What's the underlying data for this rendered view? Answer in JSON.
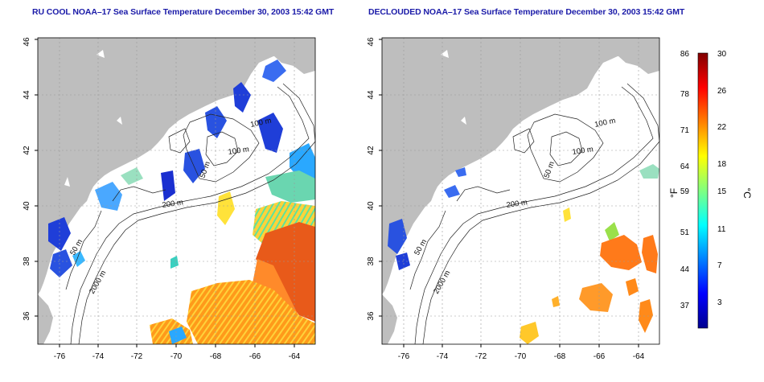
{
  "left_panel": {
    "title": "RU COOL NOAA–17 Sea Surface Temperature December 30, 2003 15:42 GMT",
    "x_ticks": [
      "-76",
      "-74",
      "-72",
      "-70",
      "-68",
      "-66",
      "-64"
    ],
    "y_ticks": [
      "36",
      "38",
      "40",
      "42",
      "44",
      "46"
    ],
    "contours": [
      "100 m",
      "100 m",
      "50 m",
      "200 m",
      "50 m",
      "2000 m"
    ]
  },
  "right_panel": {
    "title": "DECLOUDED NOAA–17 Sea Surface Temperature December 30, 2003 15:42 GMT",
    "x_ticks": [
      "-76",
      "-74",
      "-72",
      "-70",
      "-68",
      "-66",
      "-64"
    ],
    "y_ticks": [
      "36",
      "38",
      "40",
      "42",
      "44",
      "46"
    ],
    "contours": [
      "100 m",
      "100 m",
      "50 m",
      "200 m",
      "50 m",
      "2000 m"
    ]
  },
  "colorbar": {
    "f_label": "°F",
    "c_label": "°C",
    "f_ticks": [
      "86",
      "78",
      "71",
      "64",
      "59",
      "51",
      "44",
      "37"
    ],
    "c_ticks": [
      "30",
      "26",
      "22",
      "18",
      "15",
      "11",
      "7",
      "3"
    ]
  },
  "colors": {
    "land": "#bebebe",
    "title": "#1a1aa8",
    "grid": "#9a9a9a",
    "contour": "#222222"
  }
}
